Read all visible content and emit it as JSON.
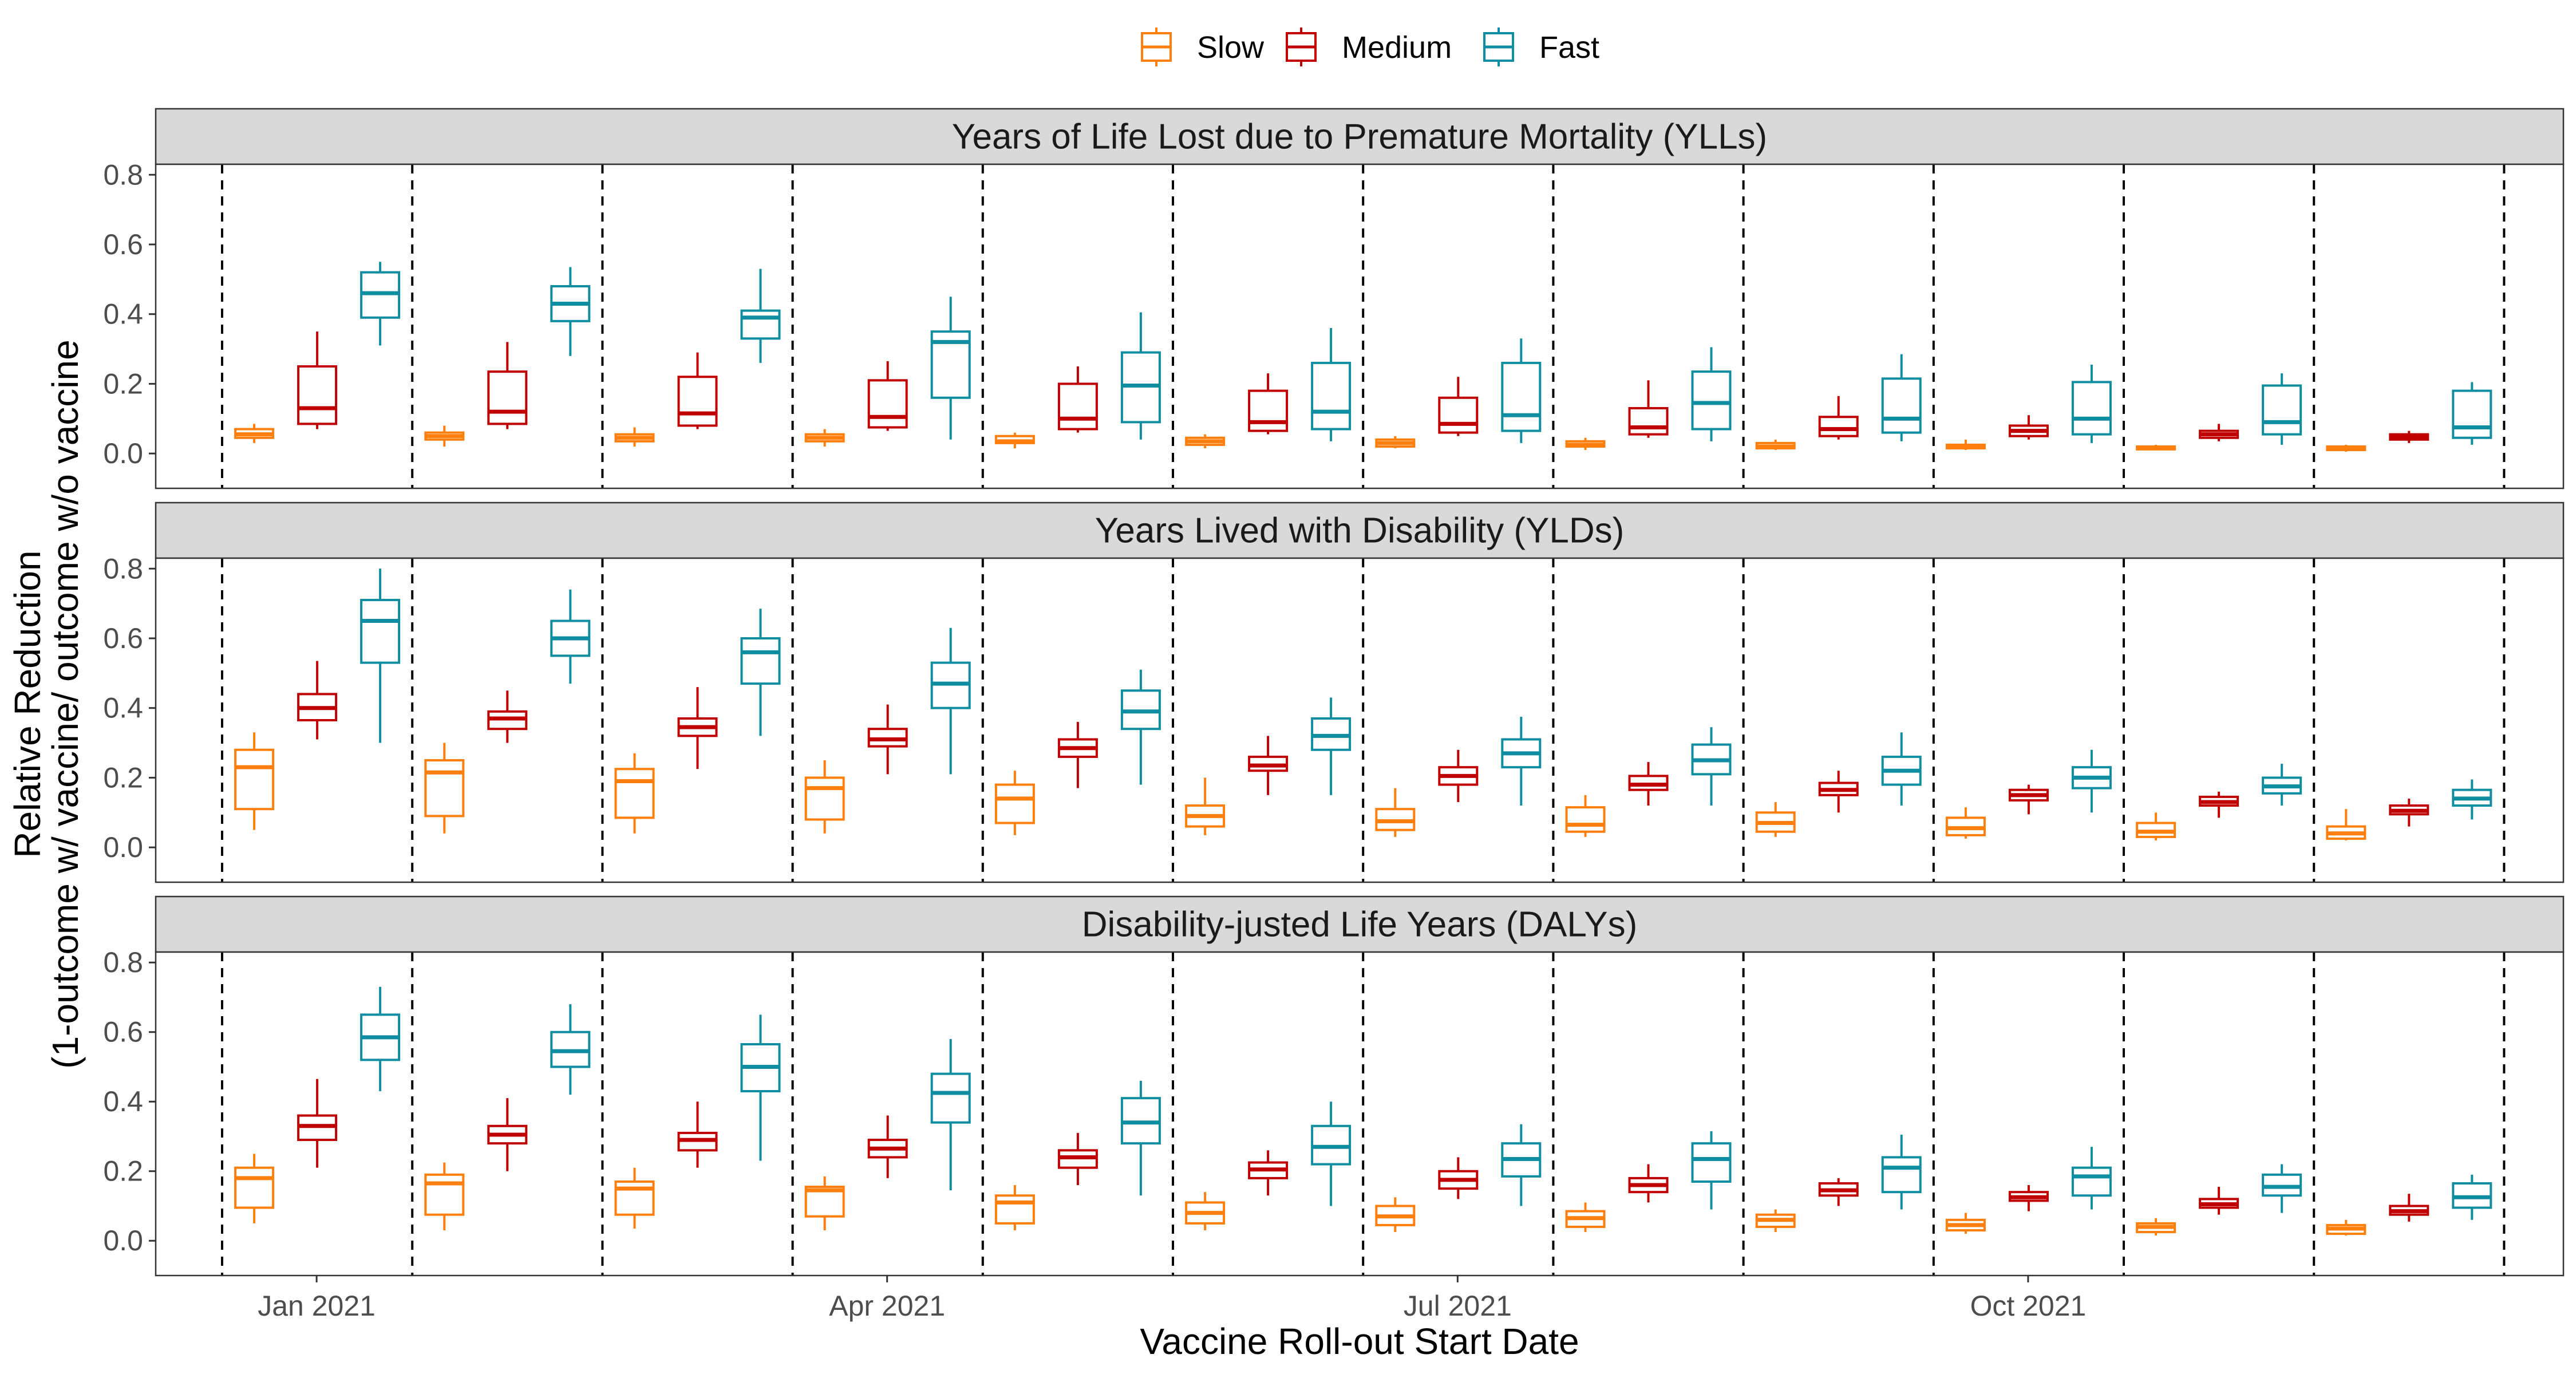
{
  "chart_data": {
    "type": "boxplot",
    "xlabel": "Vaccine Roll-out Start Date",
    "ylabel_line1": "Relative Reduction",
    "ylabel_line2": "(1-outcome w/ vaccine/ outcome w/o vaccine",
    "x_tick_labels": [
      {
        "label": "Jan 2021",
        "group_index": 0
      },
      {
        "label": "Apr 2021",
        "group_index": 3
      },
      {
        "label": "Jul 2021",
        "group_index": 6
      },
      {
        "label": "Oct 2021",
        "group_index": 9
      }
    ],
    "ylim": [
      -0.1,
      0.83
    ],
    "y_ticks": [
      0.0,
      0.2,
      0.4,
      0.6,
      0.8
    ],
    "y_tick_labels": [
      "0.0",
      "0.2",
      "0.4",
      "0.6",
      "0.8"
    ],
    "legend": {
      "position": "top",
      "entries": [
        {
          "name": "Slow",
          "color": "#FF7F0E"
        },
        {
          "name": "Medium",
          "color": "#C00000"
        },
        {
          "name": "Fast",
          "color": "#0E8EA0"
        }
      ]
    },
    "n_groups": 12,
    "dashed_separators": true,
    "panels": [
      {
        "title": "Years of Life Lost due to Premature Mortality (YLLs)",
        "groups": [
          {
            "Slow": [
              0.03,
              0.045,
              0.055,
              0.07,
              0.085
            ],
            "Medium": [
              0.07,
              0.085,
              0.13,
              0.25,
              0.35
            ],
            "Fast": [
              0.31,
              0.39,
              0.46,
              0.52,
              0.55
            ]
          },
          {
            "Slow": [
              0.02,
              0.04,
              0.05,
              0.06,
              0.08
            ],
            "Medium": [
              0.07,
              0.085,
              0.12,
              0.235,
              0.32
            ],
            "Fast": [
              0.28,
              0.38,
              0.43,
              0.48,
              0.535
            ]
          },
          {
            "Slow": [
              0.02,
              0.035,
              0.045,
              0.055,
              0.075
            ],
            "Medium": [
              0.07,
              0.08,
              0.115,
              0.22,
              0.29
            ],
            "Fast": [
              0.26,
              0.33,
              0.39,
              0.41,
              0.53
            ]
          },
          {
            "Slow": [
              0.02,
              0.035,
              0.045,
              0.055,
              0.07
            ],
            "Medium": [
              0.065,
              0.075,
              0.105,
              0.21,
              0.265
            ],
            "Fast": [
              0.04,
              0.16,
              0.32,
              0.35,
              0.45
            ]
          },
          {
            "Slow": [
              0.015,
              0.03,
              0.035,
              0.05,
              0.06
            ],
            "Medium": [
              0.06,
              0.07,
              0.1,
              0.2,
              0.25
            ],
            "Fast": [
              0.04,
              0.09,
              0.195,
              0.29,
              0.405
            ]
          },
          {
            "Slow": [
              0.015,
              0.025,
              0.035,
              0.045,
              0.055
            ],
            "Medium": [
              0.055,
              0.065,
              0.09,
              0.18,
              0.23
            ],
            "Fast": [
              0.035,
              0.07,
              0.12,
              0.26,
              0.36
            ]
          },
          {
            "Slow": [
              0.015,
              0.02,
              0.03,
              0.04,
              0.05
            ],
            "Medium": [
              0.05,
              0.06,
              0.085,
              0.16,
              0.22
            ],
            "Fast": [
              0.03,
              0.065,
              0.11,
              0.26,
              0.33
            ]
          },
          {
            "Slow": [
              0.01,
              0.02,
              0.025,
              0.035,
              0.045
            ],
            "Medium": [
              0.045,
              0.055,
              0.075,
              0.13,
              0.21
            ],
            "Fast": [
              0.035,
              0.07,
              0.145,
              0.235,
              0.305
            ]
          },
          {
            "Slow": [
              0.01,
              0.015,
              0.02,
              0.03,
              0.04
            ],
            "Medium": [
              0.04,
              0.05,
              0.07,
              0.105,
              0.165
            ],
            "Fast": [
              0.035,
              0.06,
              0.1,
              0.215,
              0.285
            ]
          },
          {
            "Slow": [
              0.01,
              0.015,
              0.02,
              0.025,
              0.04
            ],
            "Medium": [
              0.04,
              0.05,
              0.065,
              0.08,
              0.11
            ],
            "Fast": [
              0.03,
              0.055,
              0.1,
              0.205,
              0.255
            ]
          },
          {
            "Slow": [
              0.01,
              0.012,
              0.017,
              0.02,
              0.025
            ],
            "Medium": [
              0.035,
              0.045,
              0.055,
              0.065,
              0.085
            ],
            "Fast": [
              0.025,
              0.055,
              0.09,
              0.195,
              0.23
            ]
          },
          {
            "Slow": [
              0.005,
              0.01,
              0.015,
              0.02,
              0.025
            ],
            "Medium": [
              0.03,
              0.04,
              0.047,
              0.055,
              0.065
            ],
            "Fast": [
              0.025,
              0.045,
              0.075,
              0.18,
              0.205
            ]
          }
        ]
      },
      {
        "title": "Years Lived with Disability (YLDs)",
        "groups": [
          {
            "Slow": [
              0.05,
              0.11,
              0.23,
              0.28,
              0.33
            ],
            "Medium": [
              0.31,
              0.365,
              0.4,
              0.44,
              0.535
            ],
            "Fast": [
              0.3,
              0.53,
              0.65,
              0.71,
              0.8
            ]
          },
          {
            "Slow": [
              0.04,
              0.09,
              0.215,
              0.25,
              0.3
            ],
            "Medium": [
              0.3,
              0.34,
              0.37,
              0.39,
              0.45
            ],
            "Fast": [
              0.47,
              0.55,
              0.6,
              0.65,
              0.74
            ]
          },
          {
            "Slow": [
              0.04,
              0.085,
              0.19,
              0.225,
              0.27
            ],
            "Medium": [
              0.225,
              0.32,
              0.345,
              0.37,
              0.46
            ],
            "Fast": [
              0.32,
              0.47,
              0.56,
              0.6,
              0.685
            ]
          },
          {
            "Slow": [
              0.04,
              0.08,
              0.17,
              0.2,
              0.25
            ],
            "Medium": [
              0.21,
              0.29,
              0.31,
              0.34,
              0.41
            ],
            "Fast": [
              0.21,
              0.4,
              0.47,
              0.53,
              0.63
            ]
          },
          {
            "Slow": [
              0.035,
              0.07,
              0.14,
              0.18,
              0.22
            ],
            "Medium": [
              0.17,
              0.26,
              0.285,
              0.31,
              0.36
            ],
            "Fast": [
              0.18,
              0.34,
              0.39,
              0.45,
              0.51
            ]
          },
          {
            "Slow": [
              0.035,
              0.06,
              0.09,
              0.12,
              0.2
            ],
            "Medium": [
              0.15,
              0.22,
              0.235,
              0.26,
              0.32
            ],
            "Fast": [
              0.15,
              0.28,
              0.32,
              0.37,
              0.43
            ]
          },
          {
            "Slow": [
              0.03,
              0.05,
              0.075,
              0.11,
              0.17
            ],
            "Medium": [
              0.13,
              0.18,
              0.205,
              0.23,
              0.28
            ],
            "Fast": [
              0.12,
              0.23,
              0.27,
              0.31,
              0.375
            ]
          },
          {
            "Slow": [
              0.03,
              0.045,
              0.065,
              0.115,
              0.15
            ],
            "Medium": [
              0.12,
              0.165,
              0.18,
              0.205,
              0.245
            ],
            "Fast": [
              0.12,
              0.21,
              0.25,
              0.295,
              0.345
            ]
          },
          {
            "Slow": [
              0.03,
              0.045,
              0.07,
              0.1,
              0.13
            ],
            "Medium": [
              0.1,
              0.15,
              0.165,
              0.185,
              0.22
            ],
            "Fast": [
              0.12,
              0.18,
              0.22,
              0.26,
              0.33
            ]
          },
          {
            "Slow": [
              0.025,
              0.035,
              0.055,
              0.085,
              0.115
            ],
            "Medium": [
              0.095,
              0.135,
              0.15,
              0.165,
              0.18
            ],
            "Fast": [
              0.1,
              0.17,
              0.2,
              0.23,
              0.28
            ]
          },
          {
            "Slow": [
              0.02,
              0.03,
              0.045,
              0.07,
              0.1
            ],
            "Medium": [
              0.085,
              0.12,
              0.13,
              0.145,
              0.16
            ],
            "Fast": [
              0.12,
              0.155,
              0.175,
              0.2,
              0.24
            ]
          },
          {
            "Slow": [
              0.02,
              0.025,
              0.04,
              0.06,
              0.11
            ],
            "Medium": [
              0.06,
              0.095,
              0.105,
              0.12,
              0.14
            ],
            "Fast": [
              0.08,
              0.12,
              0.14,
              0.165,
              0.195
            ]
          }
        ]
      },
      {
        "title": "Disability-justed Life Years (DALYs)",
        "groups": [
          {
            "Slow": [
              0.05,
              0.095,
              0.18,
              0.21,
              0.25
            ],
            "Medium": [
              0.21,
              0.29,
              0.33,
              0.36,
              0.465
            ],
            "Fast": [
              0.43,
              0.52,
              0.585,
              0.65,
              0.73
            ]
          },
          {
            "Slow": [
              0.03,
              0.075,
              0.165,
              0.19,
              0.225
            ],
            "Medium": [
              0.2,
              0.28,
              0.305,
              0.33,
              0.41
            ],
            "Fast": [
              0.42,
              0.5,
              0.545,
              0.6,
              0.68
            ]
          },
          {
            "Slow": [
              0.035,
              0.075,
              0.15,
              0.17,
              0.21
            ],
            "Medium": [
              0.21,
              0.26,
              0.29,
              0.31,
              0.4
            ],
            "Fast": [
              0.23,
              0.43,
              0.5,
              0.565,
              0.65
            ]
          },
          {
            "Slow": [
              0.03,
              0.07,
              0.145,
              0.155,
              0.185
            ],
            "Medium": [
              0.18,
              0.24,
              0.265,
              0.29,
              0.36
            ],
            "Fast": [
              0.145,
              0.34,
              0.425,
              0.48,
              0.58
            ]
          },
          {
            "Slow": [
              0.03,
              0.05,
              0.11,
              0.13,
              0.16
            ],
            "Medium": [
              0.16,
              0.21,
              0.24,
              0.26,
              0.31
            ],
            "Fast": [
              0.13,
              0.28,
              0.34,
              0.41,
              0.46
            ]
          },
          {
            "Slow": [
              0.03,
              0.05,
              0.08,
              0.11,
              0.14
            ],
            "Medium": [
              0.13,
              0.18,
              0.205,
              0.225,
              0.26
            ],
            "Fast": [
              0.1,
              0.22,
              0.27,
              0.33,
              0.4
            ]
          },
          {
            "Slow": [
              0.025,
              0.045,
              0.07,
              0.1,
              0.125
            ],
            "Medium": [
              0.12,
              0.15,
              0.175,
              0.2,
              0.24
            ],
            "Fast": [
              0.1,
              0.185,
              0.235,
              0.28,
              0.335
            ]
          },
          {
            "Slow": [
              0.025,
              0.04,
              0.065,
              0.085,
              0.11
            ],
            "Medium": [
              0.11,
              0.14,
              0.16,
              0.18,
              0.22
            ],
            "Fast": [
              0.09,
              0.17,
              0.235,
              0.28,
              0.315
            ]
          },
          {
            "Slow": [
              0.025,
              0.04,
              0.06,
              0.075,
              0.09
            ],
            "Medium": [
              0.1,
              0.13,
              0.145,
              0.165,
              0.18
            ],
            "Fast": [
              0.09,
              0.14,
              0.21,
              0.24,
              0.305
            ]
          },
          {
            "Slow": [
              0.02,
              0.03,
              0.045,
              0.06,
              0.08
            ],
            "Medium": [
              0.085,
              0.115,
              0.125,
              0.14,
              0.16
            ],
            "Fast": [
              0.09,
              0.13,
              0.185,
              0.21,
              0.27
            ]
          },
          {
            "Slow": [
              0.015,
              0.025,
              0.04,
              0.05,
              0.065
            ],
            "Medium": [
              0.075,
              0.095,
              0.105,
              0.12,
              0.155
            ],
            "Fast": [
              0.08,
              0.13,
              0.155,
              0.19,
              0.22
            ]
          },
          {
            "Slow": [
              0.015,
              0.02,
              0.035,
              0.045,
              0.06
            ],
            "Medium": [
              0.055,
              0.075,
              0.085,
              0.1,
              0.135
            ],
            "Fast": [
              0.06,
              0.095,
              0.125,
              0.165,
              0.19
            ]
          }
        ]
      }
    ]
  }
}
